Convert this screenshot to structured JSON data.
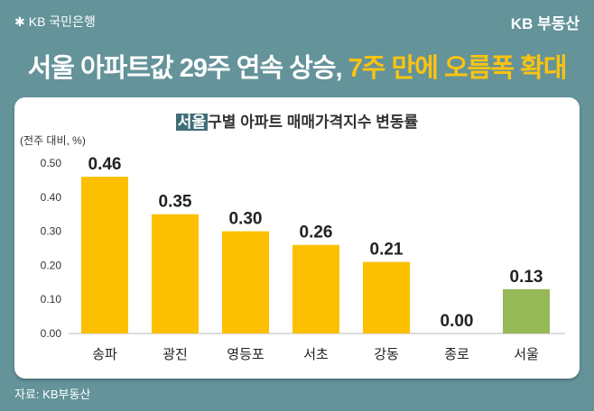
{
  "header": {
    "bank_logo": "KB 국민은행",
    "brand": "KB 부동산"
  },
  "headline": {
    "part1": "서울 아파트값 29주 연속 상승, ",
    "part2": "7주 만에 오름폭 확대"
  },
  "chart_data": {
    "type": "bar",
    "title_tag": "서울",
    "title": "구별 아파트 매매가격지수 변동률",
    "ylabel": "(전주 대비, %)",
    "categories": [
      "송파",
      "광진",
      "영등포",
      "서초",
      "강동",
      "종로",
      "서울"
    ],
    "values": [
      0.46,
      0.35,
      0.3,
      0.26,
      0.21,
      0.0,
      0.13
    ],
    "value_labels": [
      "0.46",
      "0.35",
      "0.30",
      "0.26",
      "0.21",
      "0.00",
      "0.13"
    ],
    "ylim": [
      0,
      0.5
    ],
    "yticks": [
      "0.00",
      "0.10",
      "0.20",
      "0.30",
      "0.40",
      "0.50"
    ],
    "grid": false,
    "colors": {
      "district": "#fcc000",
      "seoul": "#97b857"
    }
  },
  "source": "자료: KB부동산"
}
